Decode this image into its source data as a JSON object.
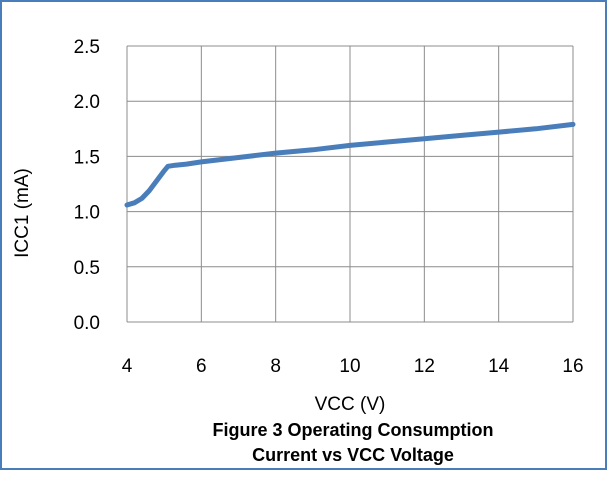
{
  "chart_data": {
    "type": "line",
    "xlabel": "VCC (V)",
    "ylabel": "ICC1 (mA)",
    "xlim": [
      4,
      16
    ],
    "ylim": [
      0,
      2.5
    ],
    "x_ticks": [
      "4",
      "6",
      "8",
      "10",
      "12",
      "14",
      "16"
    ],
    "y_ticks": [
      "0.0",
      "0.5",
      "1.0",
      "1.5",
      "2.0",
      "2.5"
    ],
    "grid": true,
    "series": [
      {
        "color": "#4a7ebb",
        "x": [
          4.0,
          4.2,
          4.4,
          4.6,
          4.8,
          5.0,
          5.1,
          5.3,
          5.6,
          6.0,
          7.0,
          8.0,
          9.0,
          10.0,
          11.0,
          12.0,
          13.0,
          14.0,
          15.0,
          16.0
        ],
        "y": [
          1.06,
          1.08,
          1.12,
          1.19,
          1.28,
          1.37,
          1.41,
          1.42,
          1.43,
          1.45,
          1.49,
          1.53,
          1.56,
          1.6,
          1.63,
          1.66,
          1.69,
          1.72,
          1.75,
          1.79
        ]
      }
    ],
    "caption_line1": "Figure 3  Operating Consumption",
    "caption_line2": "Current  vs VCC Voltage"
  },
  "colors": {
    "border": "#4a7ebb",
    "grid": "#8c8c8c",
    "line": "#4a7ebb"
  }
}
